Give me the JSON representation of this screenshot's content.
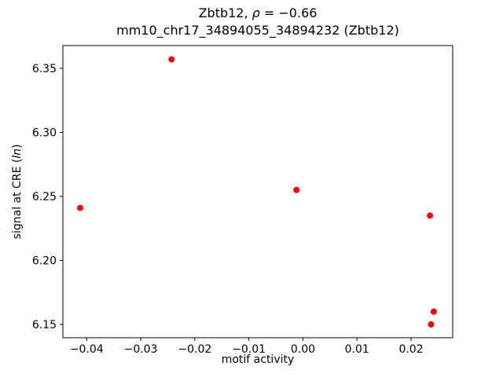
{
  "chart_data": {
    "type": "scatter",
    "title_line1": "Zbtb12, ρ = −0.66",
    "title_line1_parts": [
      {
        "text": "Zbtb12, ",
        "italic": false
      },
      {
        "text": "ρ",
        "italic": true
      },
      {
        "text": " = −0.66",
        "italic": false
      }
    ],
    "title_line2": "mm10_chr17_34894055_34894232 (Zbtb12)",
    "xlabel": "motif activity",
    "ylabel": "signal at CRE (ln)",
    "ylabel_parts": [
      {
        "text": "signal at CRE (",
        "italic": false
      },
      {
        "text": "ln",
        "italic": true
      },
      {
        "text": ")",
        "italic": false
      }
    ],
    "marker_color": "#ff0000",
    "axis_color": "#000000",
    "xlim": [
      -0.0444,
      0.0277
    ],
    "ylim": [
      6.1396,
      6.3678
    ],
    "xticks": [
      -0.04,
      -0.03,
      -0.02,
      -0.01,
      0.0,
      0.01,
      0.02
    ],
    "xtick_labels": [
      "−0.04",
      "−0.03",
      "−0.02",
      "−0.01",
      "0.00",
      "0.01",
      "0.02"
    ],
    "yticks": [
      6.15,
      6.2,
      6.25,
      6.3,
      6.35
    ],
    "ytick_labels": [
      "6.15",
      "6.20",
      "6.25",
      "6.30",
      "6.35"
    ],
    "points": [
      {
        "x": -0.0412,
        "y": 6.241
      },
      {
        "x": -0.0243,
        "y": 6.357
      },
      {
        "x": -0.0012,
        "y": 6.255
      },
      {
        "x": 0.0235,
        "y": 6.235
      },
      {
        "x": 0.0242,
        "y": 6.16
      },
      {
        "x": 0.0237,
        "y": 6.15
      }
    ],
    "legend": "none",
    "grid": false
  }
}
